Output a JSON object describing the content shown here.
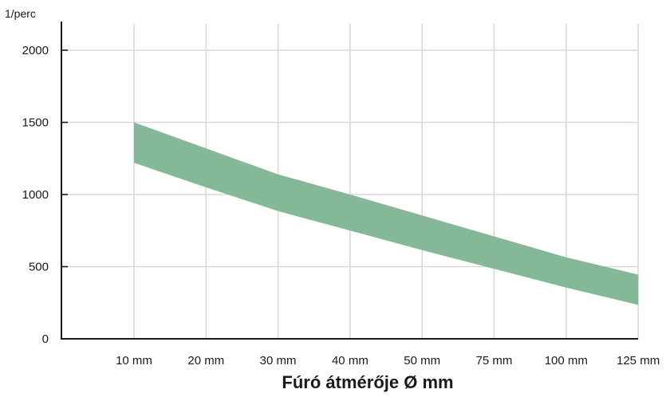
{
  "chart_data": {
    "type": "area",
    "ylabel": "1/perc",
    "xlabel": "Fúró átmérője Ø mm",
    "categories": [
      "10 mm",
      "20 mm",
      "30 mm",
      "40 mm",
      "50 mm",
      "75 mm",
      "100 mm",
      "125 mm"
    ],
    "y_ticks": [
      "0",
      "500",
      "1000",
      "1500",
      "2000"
    ],
    "ylim": [
      0,
      2000
    ],
    "grid": true,
    "legend": "none",
    "series": [
      {
        "values_upper": [
          1500,
          1320,
          1140,
          1000,
          855,
          710,
          565,
          445
        ],
        "values_lower": [
          1220,
          1050,
          885,
          750,
          615,
          485,
          355,
          235
        ]
      }
    ],
    "colors": {
      "band": "#85b896",
      "grid": "#d9d9d9",
      "axis": "#1a1a1a"
    }
  }
}
